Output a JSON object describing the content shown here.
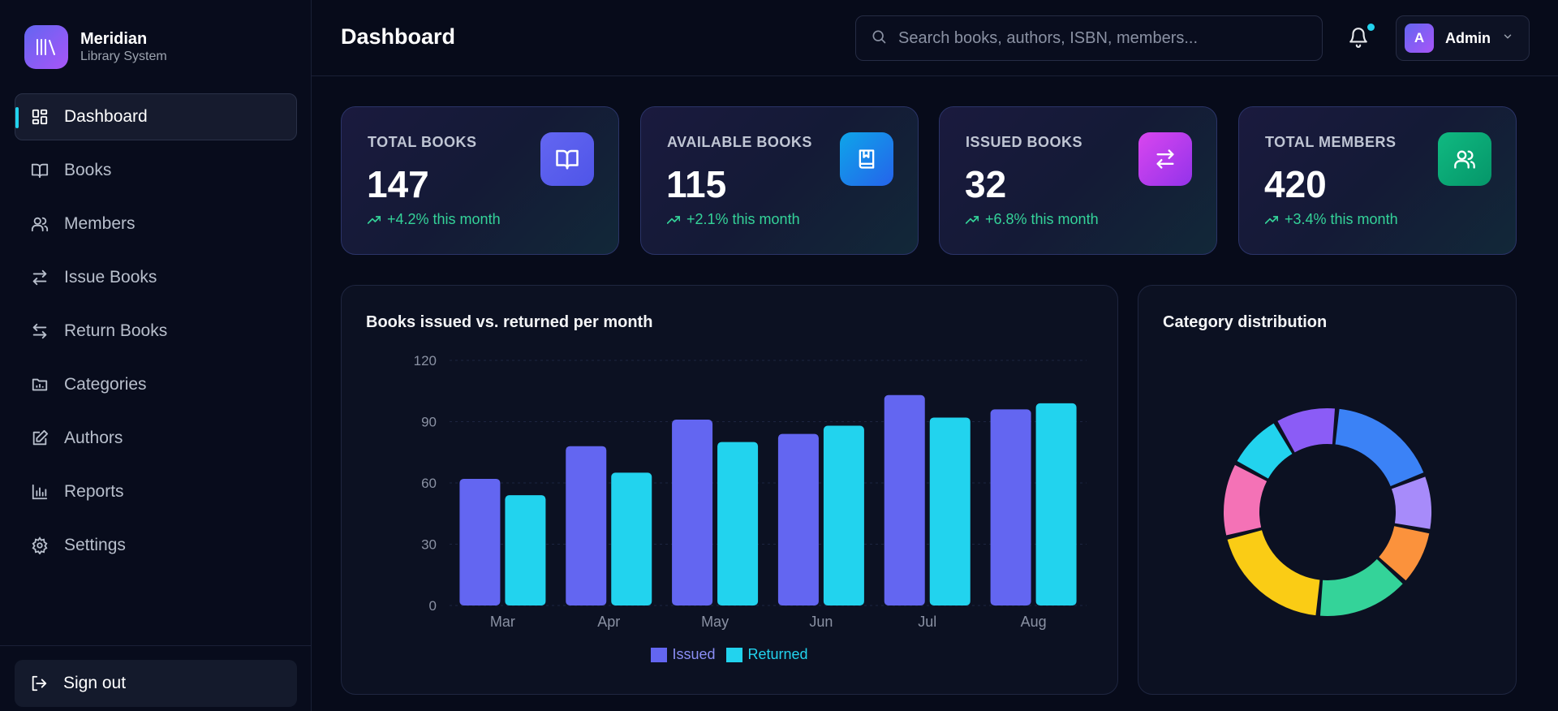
{
  "brand": {
    "name": "Meridian",
    "subtitle": "Library System"
  },
  "nav": [
    {
      "label": "Dashboard",
      "icon": "dashboard-icon",
      "active": true
    },
    {
      "label": "Books",
      "icon": "book-icon"
    },
    {
      "label": "Members",
      "icon": "users-icon"
    },
    {
      "label": "Issue Books",
      "icon": "swap-icon"
    },
    {
      "label": "Return Books",
      "icon": "return-icon"
    },
    {
      "label": "Categories",
      "icon": "folder-icon"
    },
    {
      "label": "Authors",
      "icon": "edit-icon"
    },
    {
      "label": "Reports",
      "icon": "bar-chart-icon"
    },
    {
      "label": "Settings",
      "icon": "gear-icon"
    }
  ],
  "signout_label": "Sign out",
  "header": {
    "title": "Dashboard",
    "search_placeholder": "Search books, authors, ISBN, members...",
    "user_initial": "A",
    "user_name": "Admin"
  },
  "stats": [
    {
      "label": "TOTAL BOOKS",
      "value": "147",
      "trend": "+4.2% this month",
      "icon": "book-open-icon",
      "color": "#5b5ef0"
    },
    {
      "label": "AVAILABLE BOOKS",
      "value": "115",
      "trend": "+2.1% this month",
      "icon": "bookmark-book-icon",
      "color": "#1e9be6"
    },
    {
      "label": "ISSUED BOOKS",
      "value": "32",
      "trend": "+6.8% this month",
      "icon": "swap-icon",
      "color": "#c03fe0"
    },
    {
      "label": "TOTAL MEMBERS",
      "value": "420",
      "trend": "+3.4% this month",
      "icon": "users-icon",
      "color": "#16a37f"
    }
  ],
  "bar_panel": {
    "title": "Books issued vs. returned per month"
  },
  "donut_panel": {
    "title": "Category distribution"
  },
  "chart_data": [
    {
      "type": "bar",
      "title": "Books issued vs. returned per month",
      "categories": [
        "Mar",
        "Apr",
        "May",
        "Jun",
        "Jul",
        "Aug"
      ],
      "series": [
        {
          "name": "Issued",
          "values": [
            62,
            78,
            91,
            84,
            103,
            96
          ],
          "color": "#6366f1"
        },
        {
          "name": "Returned",
          "values": [
            54,
            65,
            80,
            88,
            92,
            99
          ],
          "color": "#22d3ee"
        }
      ],
      "ylim": [
        0,
        120
      ],
      "yticks": [
        "0",
        "30",
        "60",
        "90",
        "120"
      ],
      "grid": true,
      "legend": "bottom-center"
    },
    {
      "type": "pie",
      "title": "Category distribution",
      "values": [
        10,
        18,
        9,
        9,
        15,
        20,
        12,
        9
      ],
      "colors": [
        "#8b5cf6",
        "#3b82f6",
        "#a78bfa",
        "#fb923c",
        "#34d399",
        "#facc15",
        "#f472b6",
        "#22d3ee"
      ]
    }
  ]
}
